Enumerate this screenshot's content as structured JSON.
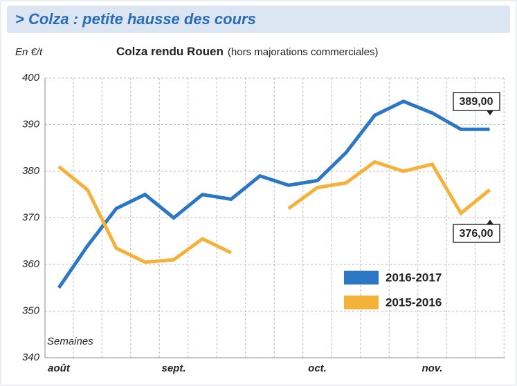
{
  "header": {
    "title": "> Colza : petite hausse des cours"
  },
  "chart_data": {
    "type": "line",
    "title": "Colza rendu Rouen",
    "subtitle": "(hors majorations commerciales)",
    "y_label": "En €/t",
    "x_label": "Semaines",
    "categories": [
      "août",
      null,
      null,
      null,
      "sept.",
      null,
      null,
      null,
      null,
      "oct.",
      null,
      null,
      null,
      "nov.",
      null,
      null
    ],
    "series": [
      {
        "name": "2016-2017",
        "color": "#2b77c6",
        "values": [
          355,
          364,
          372,
          375,
          370,
          375,
          374,
          379,
          377,
          378,
          384,
          392,
          395,
          392.5,
          389,
          389
        ]
      },
      {
        "name": "2015-2016",
        "color": "#f4b23a",
        "values": [
          381,
          376,
          363.5,
          360.5,
          361,
          365.5,
          362.5,
          null,
          372,
          376.5,
          377.5,
          382,
          380,
          381.5,
          371,
          376
        ]
      }
    ],
    "annotations": [
      "389,00",
      "376,00"
    ],
    "ylim": [
      340,
      400
    ],
    "yticks": [
      340,
      350,
      360,
      370,
      380,
      390,
      400
    ],
    "grid": true
  }
}
